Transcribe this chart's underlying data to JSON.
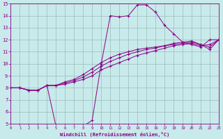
{
  "xlabel": "Windchill (Refroidissement éolien,°C)",
  "bg_color": "#c8eaea",
  "line_color": "#880088",
  "grid_color": "#99bbbb",
  "xlim": [
    0,
    23
  ],
  "ylim": [
    5,
    15
  ],
  "xticks": [
    0,
    1,
    2,
    3,
    4,
    5,
    6,
    7,
    8,
    9,
    10,
    11,
    12,
    13,
    14,
    15,
    16,
    17,
    18,
    19,
    20,
    21,
    22,
    23
  ],
  "yticks": [
    5,
    6,
    7,
    8,
    9,
    10,
    11,
    12,
    13,
    14,
    15
  ],
  "series": [
    {
      "x": [
        0,
        1,
        2,
        3,
        4,
        5,
        6,
        7,
        8,
        9,
        10,
        11,
        12,
        13,
        14,
        15,
        16,
        17,
        18,
        19,
        20,
        21,
        22,
        23
      ],
      "y": [
        8.0,
        8.0,
        7.8,
        7.8,
        8.2,
        4.8,
        4.8,
        4.8,
        4.8,
        5.3,
        10.0,
        14.0,
        13.9,
        14.0,
        14.9,
        14.9,
        14.3,
        13.2,
        12.5,
        11.8,
        11.6,
        11.4,
        12.0,
        12.0
      ]
    },
    {
      "x": [
        0,
        1,
        2,
        3,
        4,
        5,
        6,
        7,
        8,
        9,
        10,
        11,
        12,
        13,
        14,
        15,
        16,
        17,
        18,
        19,
        20,
        21,
        22,
        23
      ],
      "y": [
        8.0,
        8.0,
        7.8,
        7.8,
        8.2,
        8.2,
        8.3,
        8.5,
        8.7,
        9.0,
        9.5,
        9.8,
        10.1,
        10.4,
        10.7,
        10.9,
        11.1,
        11.3,
        11.5,
        11.6,
        11.7,
        11.5,
        11.6,
        12.0
      ]
    },
    {
      "x": [
        0,
        1,
        2,
        3,
        4,
        5,
        6,
        7,
        8,
        9,
        10,
        11,
        12,
        13,
        14,
        15,
        16,
        17,
        18,
        19,
        20,
        21,
        22,
        23
      ],
      "y": [
        8.0,
        8.0,
        7.8,
        7.8,
        8.2,
        8.2,
        8.4,
        8.6,
        8.9,
        9.3,
        9.8,
        10.2,
        10.5,
        10.8,
        11.0,
        11.2,
        11.3,
        11.5,
        11.6,
        11.7,
        11.8,
        11.6,
        11.2,
        12.0
      ]
    },
    {
      "x": [
        0,
        1,
        2,
        3,
        4,
        5,
        6,
        7,
        8,
        9,
        10,
        11,
        12,
        13,
        14,
        15,
        16,
        17,
        18,
        19,
        20,
        21,
        22,
        23
      ],
      "y": [
        8.0,
        8.0,
        7.8,
        7.8,
        8.2,
        8.2,
        8.5,
        8.7,
        9.1,
        9.6,
        10.1,
        10.5,
        10.8,
        11.0,
        11.2,
        11.3,
        11.4,
        11.5,
        11.7,
        11.8,
        11.9,
        11.6,
        11.4,
        12.0
      ]
    }
  ]
}
